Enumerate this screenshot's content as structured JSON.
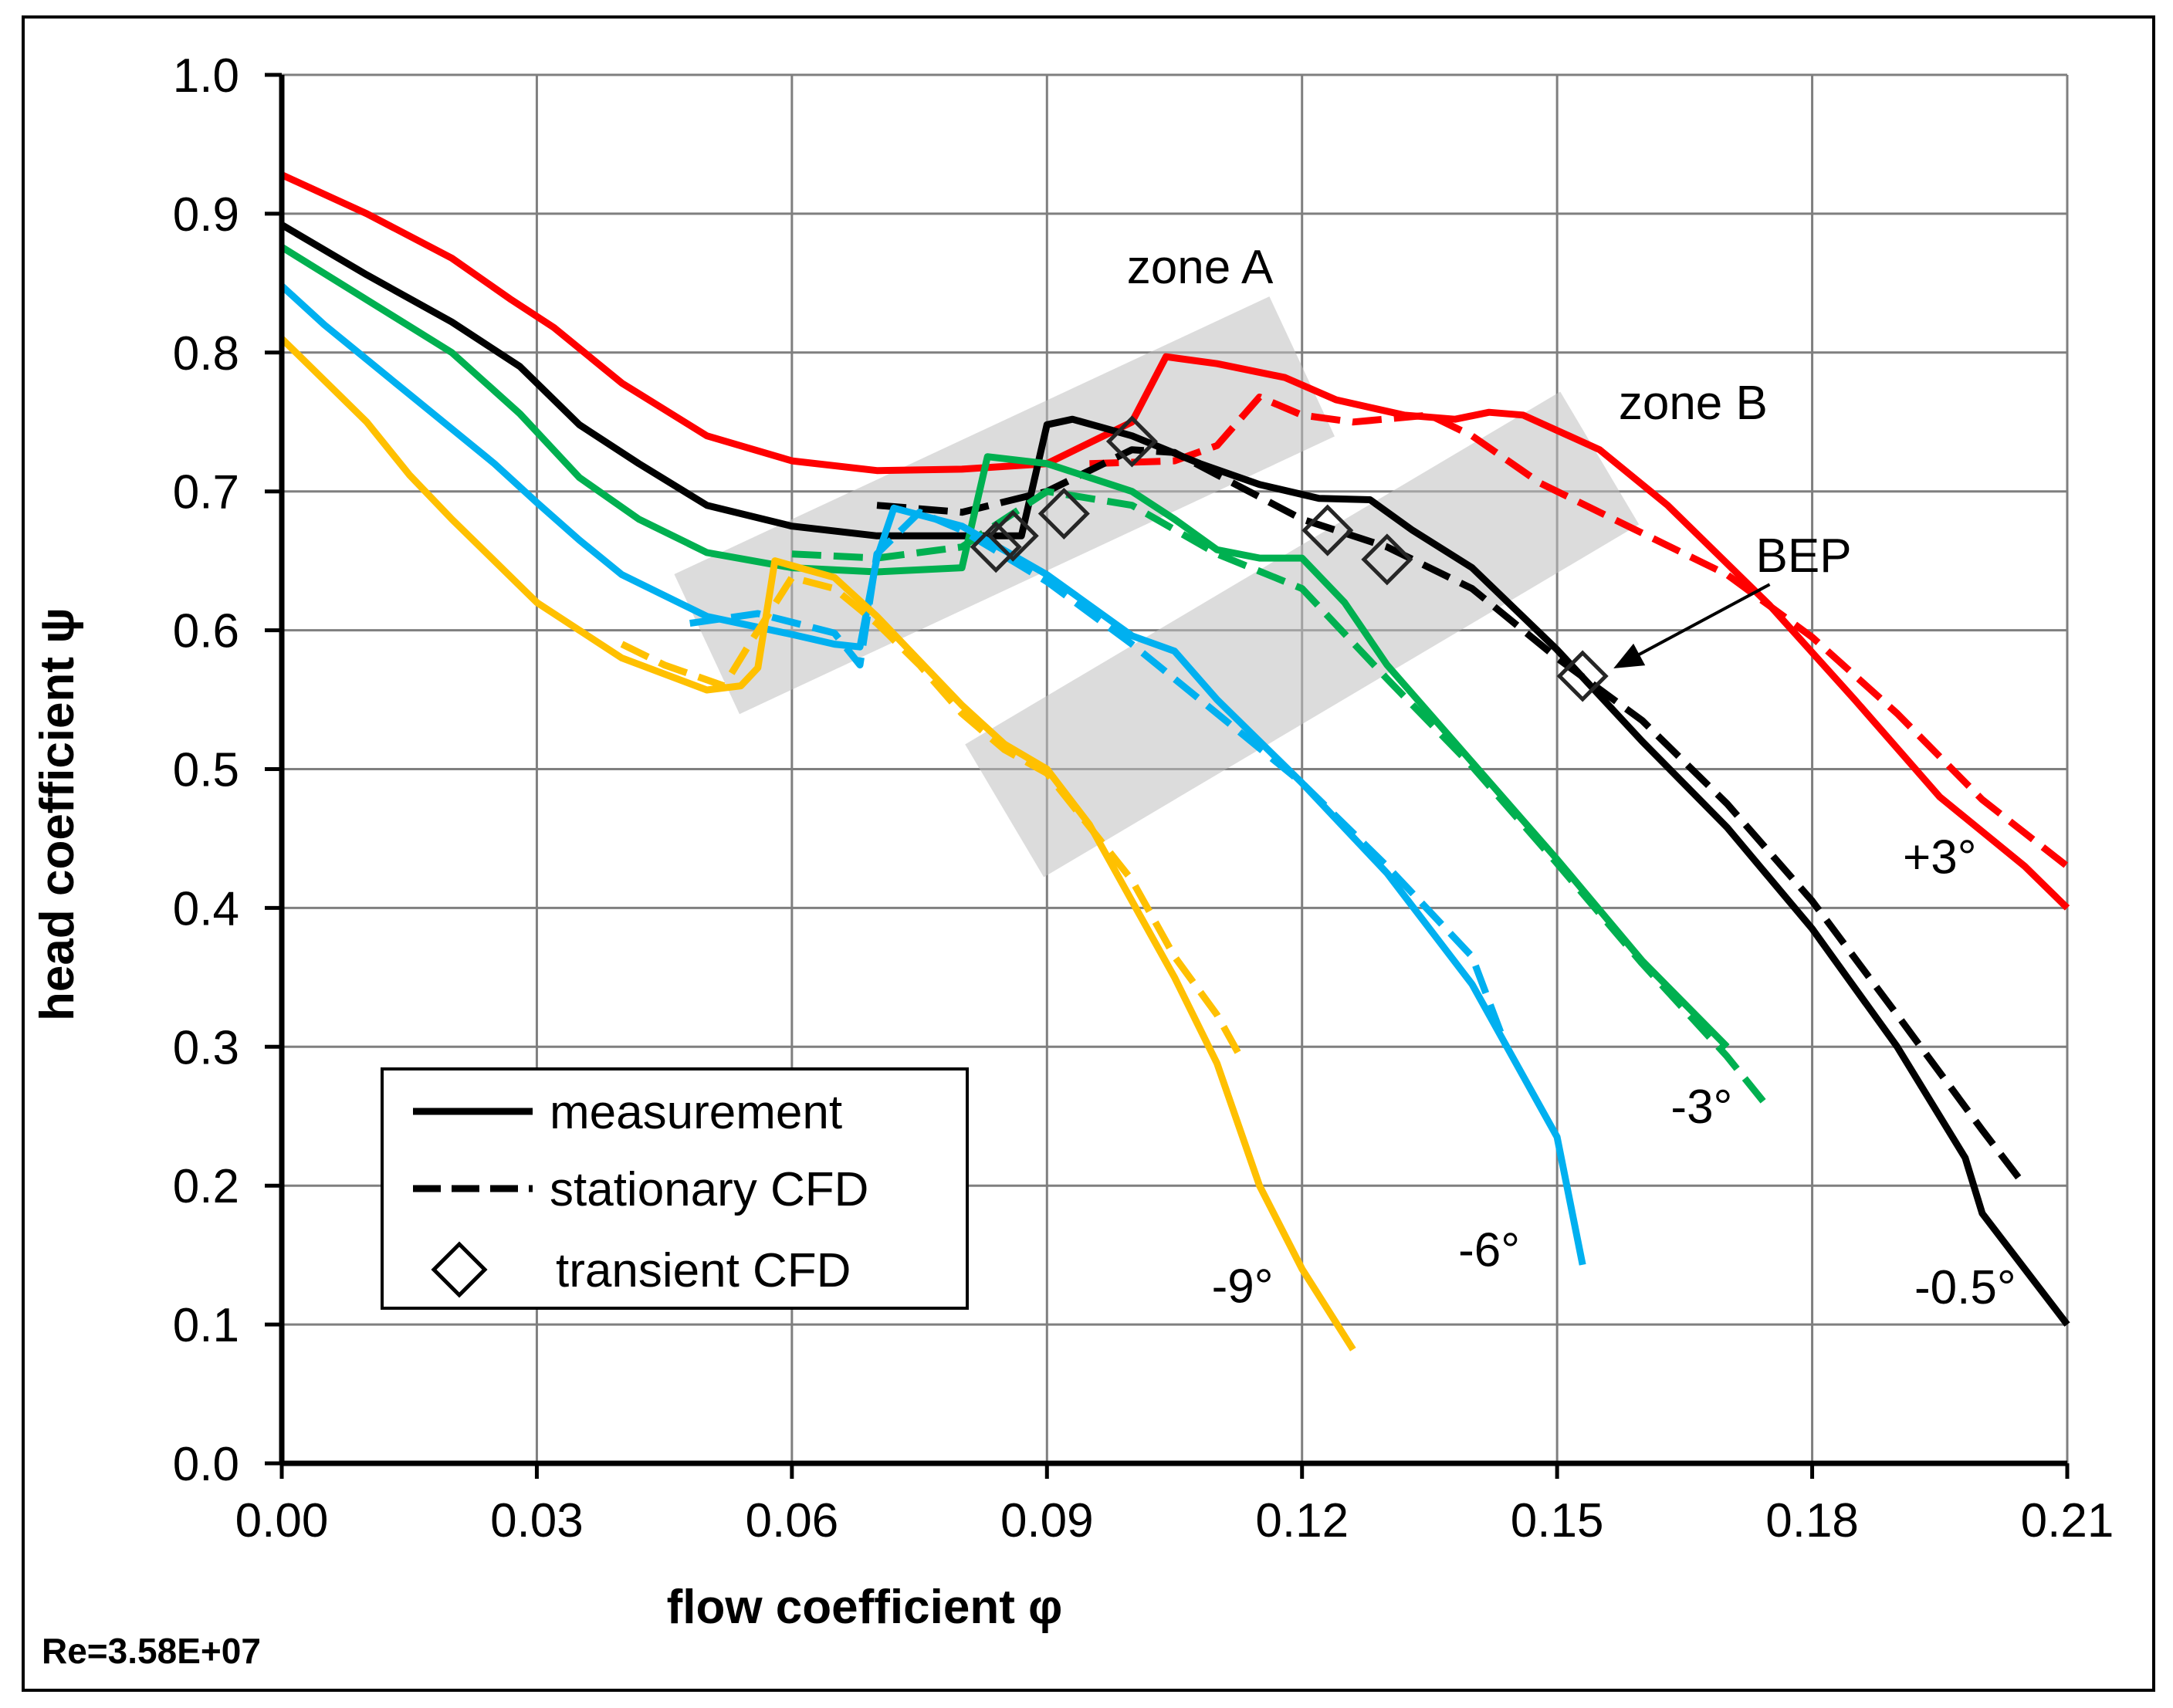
{
  "chart_data": {
    "type": "line",
    "title": "",
    "xlabel": "flow coefficient φ",
    "ylabel": "head coefficient ψ",
    "xlim": [
      0,
      0.21
    ],
    "ylim": [
      0,
      1.0
    ],
    "xticks": [
      0.0,
      0.03,
      0.06,
      0.09,
      0.12,
      0.15,
      0.18,
      0.21
    ],
    "xtick_labels": [
      "0.00",
      "0.03",
      "0.06",
      "0.09",
      "0.12",
      "0.15",
      "0.18",
      "0.21"
    ],
    "yticks": [
      0.0,
      0.1,
      0.2,
      0.3,
      0.4,
      0.5,
      0.6,
      0.7,
      0.8,
      0.9,
      1.0
    ],
    "ytick_labels": [
      "0.0",
      "0.1",
      "0.2",
      "0.3",
      "0.4",
      "0.5",
      "0.6",
      "0.7",
      "0.8",
      "0.9",
      "1.0"
    ],
    "grid": true,
    "footnote": "Re=3.58E+07",
    "legend": {
      "placement": "bottom-left",
      "entries": [
        {
          "label": "measurement",
          "style": "solid"
        },
        {
          "label": "stationary CFD",
          "style": "dashed"
        },
        {
          "label": "transient CFD",
          "style": "diamond"
        }
      ]
    },
    "series": [
      {
        "name": "+3°",
        "color": "#ff0000",
        "measurement": [
          [
            0.0,
            0.928
          ],
          [
            0.01,
            0.9
          ],
          [
            0.02,
            0.868
          ],
          [
            0.027,
            0.838
          ],
          [
            0.032,
            0.818
          ],
          [
            0.04,
            0.778
          ],
          [
            0.05,
            0.74
          ],
          [
            0.06,
            0.722
          ],
          [
            0.07,
            0.715
          ],
          [
            0.08,
            0.716
          ],
          [
            0.09,
            0.72
          ],
          [
            0.1,
            0.75
          ],
          [
            0.104,
            0.797
          ],
          [
            0.11,
            0.792
          ],
          [
            0.118,
            0.782
          ],
          [
            0.124,
            0.766
          ],
          [
            0.132,
            0.755
          ],
          [
            0.138,
            0.752
          ],
          [
            0.142,
            0.757
          ],
          [
            0.146,
            0.755
          ],
          [
            0.155,
            0.73
          ],
          [
            0.163,
            0.69
          ],
          [
            0.175,
            0.618
          ],
          [
            0.185,
            0.55
          ],
          [
            0.195,
            0.48
          ],
          [
            0.205,
            0.43
          ],
          [
            0.21,
            0.4
          ]
        ],
        "stationary": [
          [
            0.095,
            0.72
          ],
          [
            0.105,
            0.722
          ],
          [
            0.11,
            0.733
          ],
          [
            0.115,
            0.768
          ],
          [
            0.12,
            0.755
          ],
          [
            0.126,
            0.75
          ],
          [
            0.135,
            0.755
          ],
          [
            0.14,
            0.74
          ],
          [
            0.148,
            0.706
          ],
          [
            0.16,
            0.67
          ],
          [
            0.17,
            0.64
          ],
          [
            0.18,
            0.595
          ],
          [
            0.19,
            0.54
          ],
          [
            0.2,
            0.478
          ],
          [
            0.21,
            0.43
          ]
        ]
      },
      {
        "name": "-0.5°",
        "color": "#000000",
        "measurement": [
          [
            0.0,
            0.892
          ],
          [
            0.01,
            0.856
          ],
          [
            0.02,
            0.822
          ],
          [
            0.028,
            0.79
          ],
          [
            0.035,
            0.748
          ],
          [
            0.042,
            0.72
          ],
          [
            0.05,
            0.69
          ],
          [
            0.06,
            0.675
          ],
          [
            0.07,
            0.668
          ],
          [
            0.08,
            0.668
          ],
          [
            0.087,
            0.668
          ],
          [
            0.09,
            0.748
          ],
          [
            0.093,
            0.752
          ],
          [
            0.1,
            0.74
          ],
          [
            0.108,
            0.72
          ],
          [
            0.115,
            0.705
          ],
          [
            0.122,
            0.695
          ],
          [
            0.128,
            0.694
          ],
          [
            0.133,
            0.672
          ],
          [
            0.14,
            0.645
          ],
          [
            0.15,
            0.586
          ],
          [
            0.16,
            0.52
          ],
          [
            0.17,
            0.458
          ],
          [
            0.18,
            0.385
          ],
          [
            0.19,
            0.3
          ],
          [
            0.198,
            0.22
          ],
          [
            0.2,
            0.18
          ],
          [
            0.21,
            0.1
          ]
        ],
        "stationary": [
          [
            0.07,
            0.69
          ],
          [
            0.08,
            0.685
          ],
          [
            0.09,
            0.7
          ],
          [
            0.1,
            0.73
          ],
          [
            0.105,
            0.728
          ],
          [
            0.11,
            0.712
          ],
          [
            0.12,
            0.68
          ],
          [
            0.13,
            0.66
          ],
          [
            0.14,
            0.63
          ],
          [
            0.15,
            0.58
          ],
          [
            0.16,
            0.535
          ],
          [
            0.17,
            0.475
          ],
          [
            0.18,
            0.405
          ],
          [
            0.19,
            0.323
          ],
          [
            0.2,
            0.24
          ],
          [
            0.205,
            0.2
          ]
        ]
      },
      {
        "name": "-3°",
        "color": "#00b050",
        "measurement": [
          [
            0.0,
            0.876
          ],
          [
            0.01,
            0.838
          ],
          [
            0.02,
            0.8
          ],
          [
            0.028,
            0.756
          ],
          [
            0.035,
            0.71
          ],
          [
            0.042,
            0.68
          ],
          [
            0.05,
            0.656
          ],
          [
            0.06,
            0.645
          ],
          [
            0.07,
            0.642
          ],
          [
            0.08,
            0.645
          ],
          [
            0.083,
            0.725
          ],
          [
            0.09,
            0.72
          ],
          [
            0.095,
            0.71
          ],
          [
            0.1,
            0.7
          ],
          [
            0.105,
            0.68
          ],
          [
            0.11,
            0.658
          ],
          [
            0.115,
            0.652
          ],
          [
            0.12,
            0.652
          ],
          [
            0.125,
            0.62
          ],
          [
            0.13,
            0.575
          ],
          [
            0.14,
            0.505
          ],
          [
            0.15,
            0.435
          ],
          [
            0.16,
            0.362
          ],
          [
            0.17,
            0.3
          ]
        ],
        "stationary": [
          [
            0.06,
            0.655
          ],
          [
            0.07,
            0.652
          ],
          [
            0.08,
            0.66
          ],
          [
            0.09,
            0.7
          ],
          [
            0.1,
            0.69
          ],
          [
            0.11,
            0.655
          ],
          [
            0.12,
            0.63
          ],
          [
            0.13,
            0.565
          ],
          [
            0.14,
            0.502
          ],
          [
            0.15,
            0.432
          ],
          [
            0.16,
            0.36
          ],
          [
            0.17,
            0.293
          ],
          [
            0.175,
            0.255
          ]
        ]
      },
      {
        "name": "-6°",
        "color": "#00b0f0",
        "measurement": [
          [
            0.0,
            0.848
          ],
          [
            0.005,
            0.82
          ],
          [
            0.013,
            0.78
          ],
          [
            0.02,
            0.745
          ],
          [
            0.025,
            0.72
          ],
          [
            0.03,
            0.692
          ],
          [
            0.035,
            0.665
          ],
          [
            0.04,
            0.64
          ],
          [
            0.05,
            0.61
          ],
          [
            0.06,
            0.597
          ],
          [
            0.065,
            0.59
          ],
          [
            0.068,
            0.588
          ],
          [
            0.07,
            0.652
          ],
          [
            0.072,
            0.688
          ],
          [
            0.08,
            0.675
          ],
          [
            0.09,
            0.64
          ],
          [
            0.1,
            0.596
          ],
          [
            0.105,
            0.585
          ],
          [
            0.11,
            0.55
          ],
          [
            0.12,
            0.49
          ],
          [
            0.13,
            0.425
          ],
          [
            0.14,
            0.345
          ],
          [
            0.15,
            0.235
          ],
          [
            0.153,
            0.143
          ]
        ],
        "stationary": [
          [
            0.048,
            0.605
          ],
          [
            0.056,
            0.612
          ],
          [
            0.065,
            0.598
          ],
          [
            0.068,
            0.575
          ],
          [
            0.07,
            0.655
          ],
          [
            0.075,
            0.685
          ],
          [
            0.08,
            0.672
          ],
          [
            0.09,
            0.635
          ],
          [
            0.1,
            0.59
          ],
          [
            0.11,
            0.54
          ],
          [
            0.12,
            0.49
          ],
          [
            0.13,
            0.43
          ],
          [
            0.14,
            0.365
          ],
          [
            0.144,
            0.3
          ]
        ]
      },
      {
        "name": "-9°",
        "color": "#ffc000",
        "measurement": [
          [
            0.0,
            0.81
          ],
          [
            0.005,
            0.78
          ],
          [
            0.01,
            0.75
          ],
          [
            0.015,
            0.712
          ],
          [
            0.02,
            0.68
          ],
          [
            0.025,
            0.65
          ],
          [
            0.03,
            0.62
          ],
          [
            0.035,
            0.6
          ],
          [
            0.04,
            0.58
          ],
          [
            0.05,
            0.557
          ],
          [
            0.054,
            0.56
          ],
          [
            0.056,
            0.573
          ],
          [
            0.058,
            0.65
          ],
          [
            0.065,
            0.638
          ],
          [
            0.07,
            0.61
          ],
          [
            0.075,
            0.578
          ],
          [
            0.08,
            0.546
          ],
          [
            0.085,
            0.518
          ],
          [
            0.09,
            0.5
          ],
          [
            0.095,
            0.46
          ],
          [
            0.1,
            0.405
          ],
          [
            0.105,
            0.35
          ],
          [
            0.11,
            0.288
          ],
          [
            0.115,
            0.2
          ],
          [
            0.12,
            0.14
          ],
          [
            0.126,
            0.082
          ]
        ],
        "stationary": [
          [
            0.04,
            0.59
          ],
          [
            0.045,
            0.575
          ],
          [
            0.052,
            0.56
          ],
          [
            0.055,
            0.59
          ],
          [
            0.06,
            0.638
          ],
          [
            0.065,
            0.63
          ],
          [
            0.07,
            0.605
          ],
          [
            0.075,
            0.575
          ],
          [
            0.08,
            0.54
          ],
          [
            0.085,
            0.514
          ],
          [
            0.09,
            0.497
          ],
          [
            0.1,
            0.42
          ],
          [
            0.105,
            0.365
          ],
          [
            0.11,
            0.323
          ],
          [
            0.113,
            0.29
          ]
        ]
      }
    ],
    "transient": [
      [
        0.084,
        0.66
      ],
      [
        0.086,
        0.668
      ],
      [
        0.092,
        0.684
      ],
      [
        0.1,
        0.736
      ],
      [
        0.123,
        0.672
      ],
      [
        0.13,
        0.651
      ],
      [
        0.153,
        0.567
      ]
    ],
    "zones": [
      {
        "label": "zone A",
        "from": [
          0.05,
          0.59
        ],
        "to": [
          0.12,
          0.79
        ]
      },
      {
        "label": "zone B",
        "from": [
          0.085,
          0.47
        ],
        "to": [
          0.155,
          0.724
        ]
      }
    ],
    "annotations": [
      {
        "text": "+3°",
        "x": 0.195,
        "y": 0.425
      },
      {
        "text": "-0.5°",
        "x": 0.198,
        "y": 0.115
      },
      {
        "text": "-3°",
        "x": 0.167,
        "y": 0.245
      },
      {
        "text": "-6°",
        "x": 0.142,
        "y": 0.142
      },
      {
        "text": "-9°",
        "x": 0.113,
        "y": 0.116
      },
      {
        "text": "zone A",
        "x": 0.108,
        "y": 0.85
      },
      {
        "text": "zone B",
        "x": 0.166,
        "y": 0.752
      },
      {
        "text": "BEP",
        "x": 0.179,
        "y": 0.642
      }
    ]
  }
}
